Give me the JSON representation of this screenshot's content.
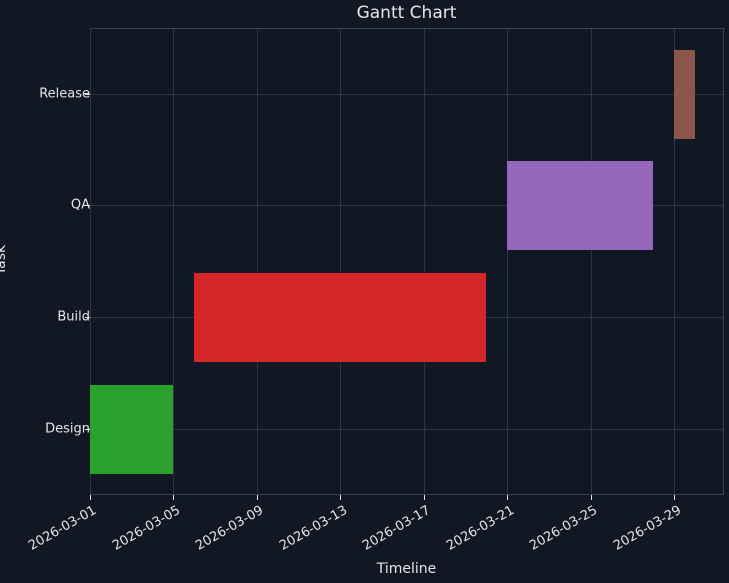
{
  "chart_data": {
    "type": "gantt",
    "title": "Gantt Chart",
    "xlabel": "Timeline",
    "ylabel": "Task",
    "x_ticks": [
      "2026-03-01",
      "2026-03-05",
      "2026-03-09",
      "2026-03-13",
      "2026-03-17",
      "2026-03-21",
      "2026-03-25",
      "2026-03-29"
    ],
    "xlim": [
      "2026-03-01",
      "2026-03-31"
    ],
    "categories": [
      "Design",
      "Build",
      "QA",
      "Release"
    ],
    "tasks": [
      {
        "name": "Design",
        "start": "2026-03-01",
        "end": "2026-03-05",
        "color": "#2ca02c"
      },
      {
        "name": "Build",
        "start": "2026-03-06",
        "end": "2026-03-20",
        "color": "#d62728"
      },
      {
        "name": "QA",
        "start": "2026-03-21",
        "end": "2026-03-28",
        "color": "#9467bd"
      },
      {
        "name": "Release",
        "start": "2026-03-29",
        "end": "2026-03-30",
        "color": "#8c564b"
      }
    ],
    "grid": true,
    "background": "#111723"
  }
}
